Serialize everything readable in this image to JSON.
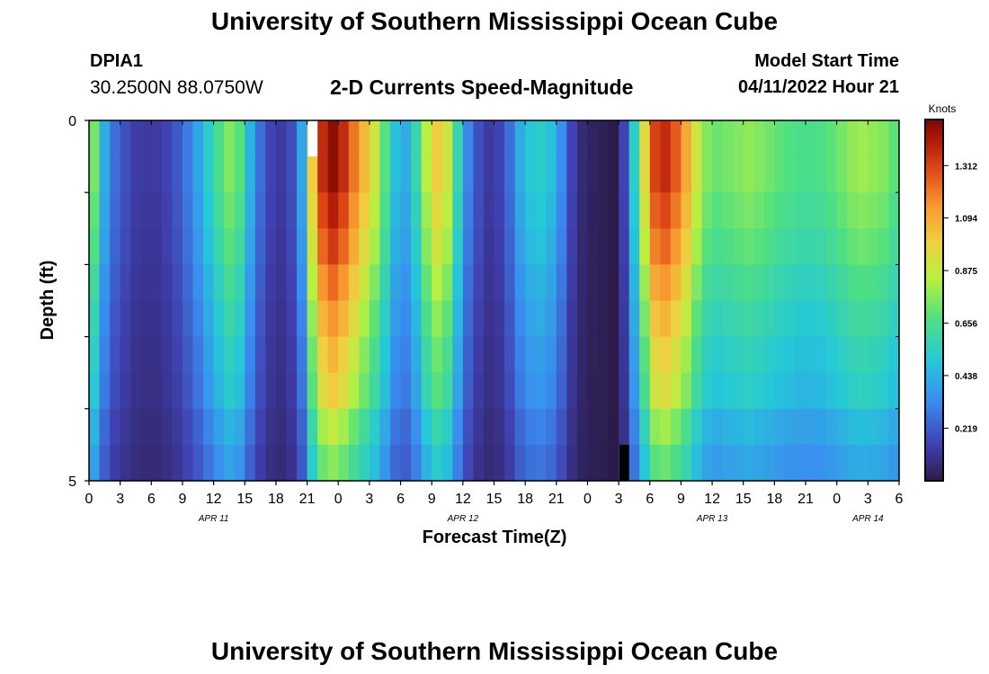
{
  "header": {
    "title": "University of Southern Mississippi Ocean Cube",
    "station": "DPIA1",
    "coords": "30.2500N  88.0750W",
    "subtitle": "2-D Currents Speed-Magnitude",
    "model_start_label": "Model Start Time",
    "model_start_value": "04/11/2022 Hour 21"
  },
  "footer": {
    "title": "University of Southern Mississippi Ocean Cube"
  },
  "chart_data": {
    "type": "heatmap",
    "title": "2-D Currents Speed-Magnitude",
    "xlabel": "Forecast Time(Z)",
    "ylabel": "Depth (ft)",
    "x_unit": "hours since APR 11 00Z",
    "x_range": [
      0,
      78
    ],
    "y_range": [
      0,
      5
    ],
    "y_ticks": [
      "0",
      "5"
    ],
    "x_tick_labels": [
      "0",
      "3",
      "6",
      "9",
      "12",
      "15",
      "18",
      "21",
      "0",
      "3",
      "6",
      "9",
      "12",
      "15",
      "18",
      "21",
      "0",
      "3",
      "6",
      "9",
      "12",
      "15",
      "18",
      "21",
      "0",
      "3",
      "6"
    ],
    "date_labels": [
      {
        "label": "APR 11",
        "hour": 12
      },
      {
        "label": "APR 12",
        "hour": 36
      },
      {
        "label": "APR 13",
        "hour": 60
      },
      {
        "label": "APR 14",
        "hour": 75
      }
    ],
    "colorbar": {
      "title": "Knots",
      "ticks": [
        "0.219",
        "0.438",
        "0.656",
        "0.875",
        "1.094",
        "1.312"
      ],
      "tick_values": [
        0.219,
        0.438,
        0.656,
        0.875,
        1.094,
        1.312
      ],
      "min": 0.0,
      "max": 1.5
    },
    "profile": [
      0.7,
      0.4,
      0.25,
      0.18,
      0.13,
      0.12,
      0.12,
      0.15,
      0.2,
      0.28,
      0.38,
      0.5,
      0.62,
      0.72,
      0.65,
      0.42,
      0.25,
      0.15,
      0.12,
      0.18,
      0.38,
      0.95,
      1.3,
      1.4,
      1.3,
      1.15,
      1.0,
      0.85,
      0.65,
      0.45,
      0.4,
      0.55,
      0.8,
      0.95,
      0.85,
      0.55,
      0.3,
      0.18,
      0.12,
      0.15,
      0.25,
      0.4,
      0.48,
      0.5,
      0.45,
      0.32,
      0.15,
      0.06,
      0.03,
      0.02,
      0.0,
      0.15,
      0.5,
      0.9,
      1.25,
      1.3,
      1.2,
      1.05,
      0.85,
      0.72,
      0.68,
      0.7,
      0.72,
      0.74,
      0.72,
      0.69,
      0.66,
      0.64,
      0.62,
      0.62,
      0.63,
      0.66,
      0.7,
      0.74,
      0.76,
      0.74,
      0.72,
      0.66
    ],
    "depth_factors": [
      1.05,
      1.05,
      1.0,
      0.95,
      0.88,
      0.82,
      0.76,
      0.72,
      0.62,
      0.55
    ],
    "missing_cells": [
      {
        "hour": 21,
        "depth_row": 0
      },
      {
        "hour": 51,
        "depth_row": 9
      }
    ]
  }
}
